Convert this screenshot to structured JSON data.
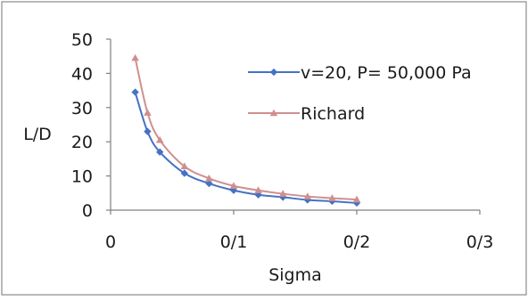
{
  "chart_data": {
    "type": "line",
    "xlabel": "Sigma",
    "ylabel": "L/D",
    "xlim": [
      0,
      0.3
    ],
    "ylim": [
      0,
      50
    ],
    "x_ticks": [
      0,
      0.1,
      0.2,
      0.3
    ],
    "x_tick_labels": [
      "0",
      "0/1",
      "0/2",
      "0/3"
    ],
    "y_ticks": [
      0,
      10,
      20,
      30,
      40,
      50
    ],
    "y_tick_labels": [
      "0",
      "10",
      "20",
      "30",
      "40",
      "50"
    ],
    "grid": false,
    "legend_position": "right",
    "series": [
      {
        "name": "v=20, P= 50,000 Pa",
        "color": "#4472C4",
        "marker": "diamond",
        "x": [
          0.02,
          0.03,
          0.04,
          0.06,
          0.08,
          0.1,
          0.12,
          0.14,
          0.16,
          0.18,
          0.2
        ],
        "y": [
          34.5,
          23.0,
          17.0,
          10.8,
          7.8,
          5.8,
          4.5,
          3.8,
          3.0,
          2.6,
          2.1
        ]
      },
      {
        "name": "Richard",
        "color": "#D08F8F",
        "marker": "triangle",
        "x": [
          0.02,
          0.03,
          0.04,
          0.06,
          0.08,
          0.1,
          0.12,
          0.14,
          0.16,
          0.18,
          0.2
        ],
        "y": [
          44.5,
          28.5,
          20.5,
          12.8,
          9.3,
          7.1,
          5.8,
          4.8,
          4.0,
          3.5,
          3.1
        ]
      }
    ]
  }
}
